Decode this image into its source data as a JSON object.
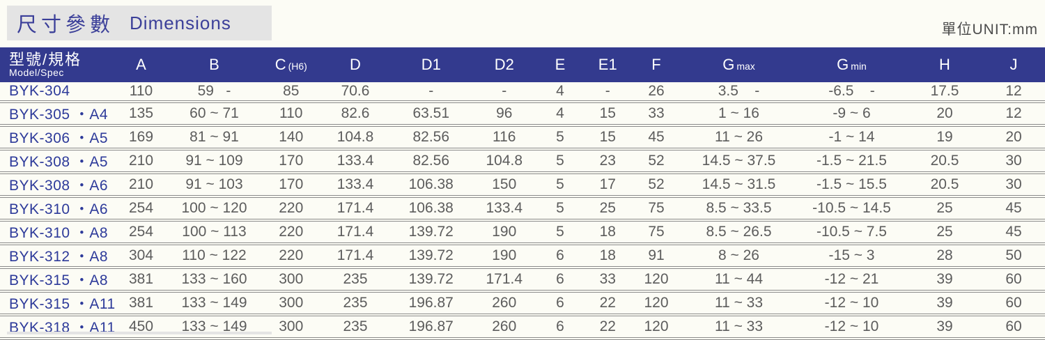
{
  "title": {
    "zh": "尺寸參數",
    "en": "Dimensions"
  },
  "unit_label": "單位UNIT:mm",
  "colors": {
    "header_bg": "#333a8e",
    "header_text": "#ffffff",
    "model_text": "#2d3a9a",
    "value_text": "#5c5c5c",
    "title_text": "#3b3f99",
    "title_box_bg": "#e4e4e4",
    "row_divider": "#8a8a8a"
  },
  "table": {
    "model_header": {
      "zh": "型號/規格",
      "en": "Model/Spec"
    },
    "columns": [
      {
        "main": "A",
        "sub": ""
      },
      {
        "main": "B",
        "sub": ""
      },
      {
        "main": "C",
        "sub": "(H6)"
      },
      {
        "main": "D",
        "sub": ""
      },
      {
        "main": "D1",
        "sub": ""
      },
      {
        "main": "D2",
        "sub": ""
      },
      {
        "main": "E",
        "sub": ""
      },
      {
        "main": "E1",
        "sub": ""
      },
      {
        "main": "F",
        "sub": ""
      },
      {
        "main": "G",
        "sub": "max"
      },
      {
        "main": "G",
        "sub": "min"
      },
      {
        "main": "H",
        "sub": ""
      },
      {
        "main": "J",
        "sub": ""
      }
    ],
    "rows": [
      {
        "model": "BYK-304",
        "values": [
          "110",
          "59   -",
          "85",
          "70.6",
          "-",
          "-",
          "4",
          "-",
          "26",
          "3.5    -",
          "-6.5    -",
          "17.5",
          "12"
        ]
      },
      {
        "model": "BYK-305 ・A4",
        "values": [
          "135",
          "60 ~ 71",
          "110",
          "82.6",
          "63.51",
          "96",
          "4",
          "15",
          "33",
          "1 ~ 16",
          "-9 ~ 6",
          "20",
          "12"
        ]
      },
      {
        "model": "BYK-306 ・A5",
        "values": [
          "169",
          "81 ~ 91",
          "140",
          "104.8",
          "82.56",
          "116",
          "5",
          "15",
          "45",
          "11 ~ 26",
          "-1 ~ 14",
          "19",
          "20"
        ]
      },
      {
        "model": "BYK-308 ・A5",
        "values": [
          "210",
          "91 ~ 109",
          "170",
          "133.4",
          "82.56",
          "104.8",
          "5",
          "23",
          "52",
          "14.5 ~ 37.5",
          "-1.5 ~ 21.5",
          "20.5",
          "30"
        ]
      },
      {
        "model": "BYK-308 ・A6",
        "values": [
          "210",
          "91 ~ 103",
          "170",
          "133.4",
          "106.38",
          "150",
          "5",
          "17",
          "52",
          "14.5 ~ 31.5",
          "-1.5 ~ 15.5",
          "20.5",
          "30"
        ]
      },
      {
        "model": "BYK-310 ・A6",
        "values": [
          "254",
          "100 ~ 120",
          "220",
          "171.4",
          "106.38",
          "133.4",
          "5",
          "25",
          "75",
          "8.5 ~ 33.5",
          "-10.5 ~ 14.5",
          "25",
          "45"
        ]
      },
      {
        "model": "BYK-310 ・A8",
        "values": [
          "254",
          "100 ~ 113",
          "220",
          "171.4",
          "139.72",
          "190",
          "5",
          "18",
          "75",
          "8.5 ~ 26.5",
          "-10.5 ~ 7.5",
          "25",
          "45"
        ]
      },
      {
        "model": "BYK-312 ・A8",
        "values": [
          "304",
          "110 ~ 122",
          "220",
          "171.4",
          "139.72",
          "190",
          "6",
          "18",
          "91",
          "8 ~ 26",
          "-15 ~ 3",
          "28",
          "50"
        ]
      },
      {
        "model": "BYK-315 ・A8",
        "values": [
          "381",
          "133 ~ 160",
          "300",
          "235",
          "139.72",
          "171.4",
          "6",
          "33",
          "120",
          "11 ~ 44",
          "-12 ~ 21",
          "39",
          "60"
        ]
      },
      {
        "model": "BYK-315 ・A11",
        "values": [
          "381",
          "133 ~ 149",
          "300",
          "235",
          "196.87",
          "260",
          "6",
          "22",
          "120",
          "11 ~ 33",
          "-12 ~ 10",
          "39",
          "60"
        ]
      },
      {
        "model": "BYK-318 ・A11",
        "values": [
          "450",
          "133 ~ 149",
          "300",
          "235",
          "196.87",
          "260",
          "6",
          "22",
          "120",
          "11 ~ 33",
          "-12 ~ 10",
          "39",
          "60"
        ]
      }
    ]
  }
}
